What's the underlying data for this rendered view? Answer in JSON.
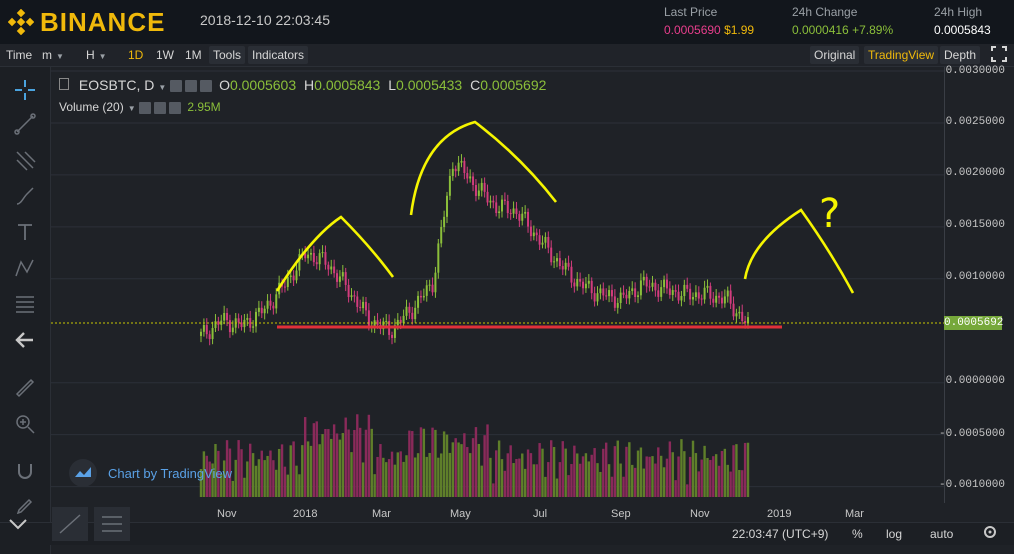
{
  "header": {
    "brand": "BINANCE",
    "datetime": "2018-12-10 22:03:45",
    "last_price_label": "Last Price",
    "last_price": "0.0005690",
    "last_price_usd": "$1.99",
    "change_label": "24h Change",
    "change_value": "0.0000416",
    "change_pct": "+7.89%",
    "high_label": "24h High",
    "high_value": "0.0005843"
  },
  "toolbar": {
    "time": "Time",
    "m": "m",
    "h": "H",
    "d1": "1D",
    "w1": "1W",
    "mo1": "1M",
    "tools": "Tools",
    "indicators": "Indicators",
    "original": "Original",
    "tradingview": "TradingView",
    "depth": "Depth"
  },
  "legend": {
    "symbol": "EOSBTC, D",
    "o_label": "O",
    "o_value": "0.0005603",
    "h_label": "H",
    "h_value": "0.0005843",
    "l_label": "L",
    "l_value": "0.0005433",
    "c_label": "C",
    "c_value": "0.0005692",
    "volume_label": "Volume (20)",
    "volume_value": "2.95M"
  },
  "price_axis": [
    "0.0030000",
    "0.0025000",
    "0.0020000",
    "0.0015000",
    "0.0010000",
    "0.0000000",
    "-0.0005000",
    "-0.0010000"
  ],
  "current_price_tag": "0.0005692",
  "time_axis": [
    "Nov",
    "2018",
    "Mar",
    "May",
    "Jul",
    "Sep",
    "Nov",
    "2019",
    "Mar"
  ],
  "bottombar": {
    "clock": "22:03:47 (UTC+9)",
    "pct": "%",
    "log": "log",
    "auto": "auto"
  },
  "watermark": "Chart by TradingView",
  "annotation": "?",
  "colors": {
    "brand": "#f0b90b",
    "up": "#8bbf3a",
    "down": "#d23c7d",
    "support": "#e0303a",
    "drawing": "#f5f500"
  },
  "chart_data": {
    "type": "candlestick",
    "title": "EOSBTC, D",
    "x_ticks": [
      "Nov",
      "2018",
      "Mar",
      "May",
      "Jul",
      "Sep",
      "Nov",
      "2019",
      "Mar"
    ],
    "ylim": [
      -0.0011,
      0.003
    ],
    "series": [
      {
        "values": [
          0.00045,
          0.0006,
          0.00055,
          0.0007,
          0.00095,
          0.00125,
          0.00115,
          0.0009,
          0.0006,
          0.0005,
          0.0007,
          0.00095,
          0.00215,
          0.0019,
          0.0017,
          0.00165,
          0.0014,
          0.00115,
          0.00095,
          0.00085,
          0.0008,
          0.00095,
          0.0009,
          0.00085,
          0.00085,
          0.0008,
          0.00055
        ]
      }
    ]
  }
}
